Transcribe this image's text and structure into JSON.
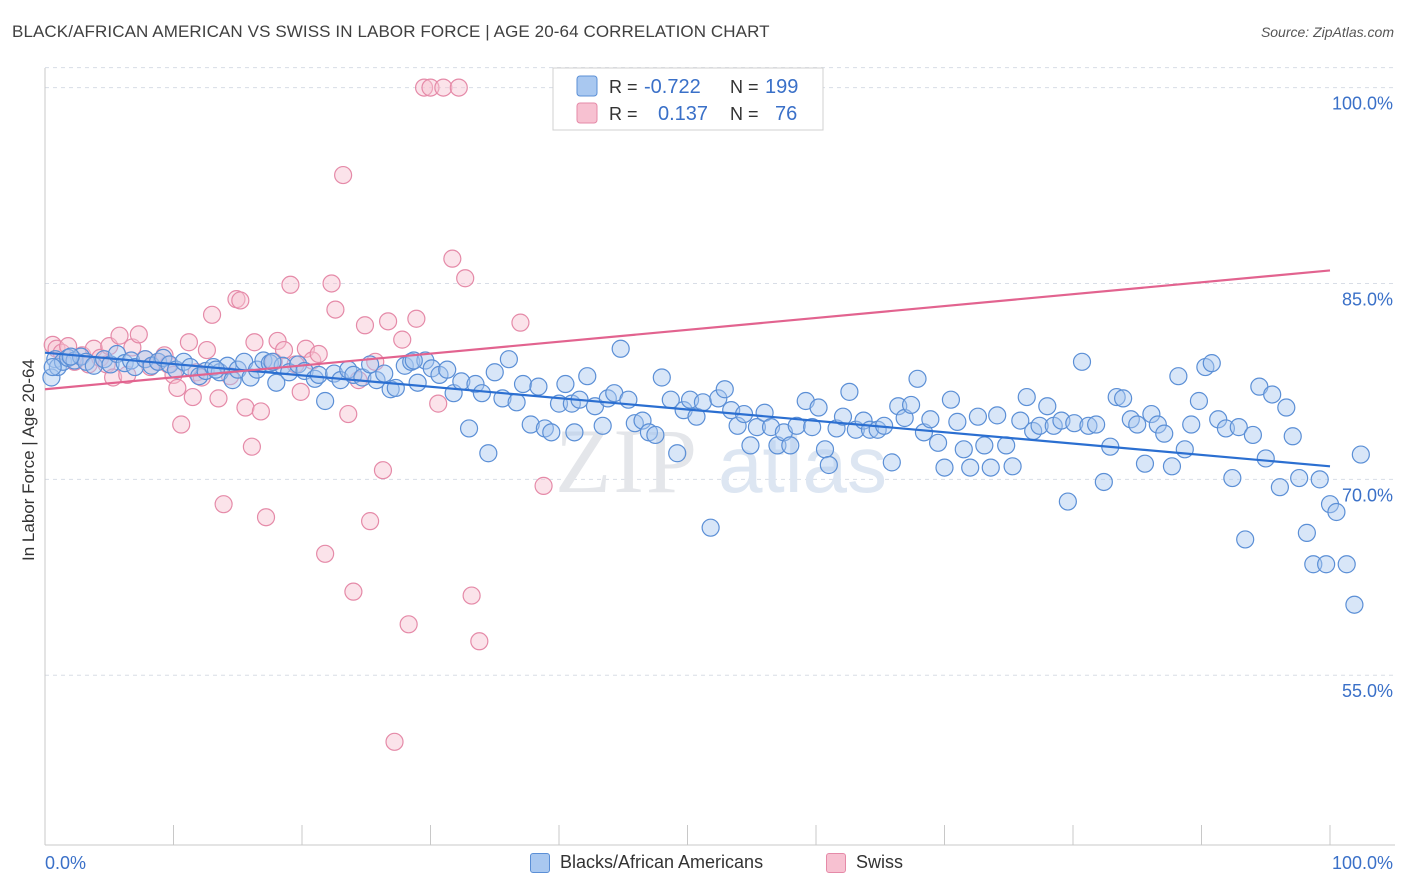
{
  "title": "BLACK/AFRICAN AMERICAN VS SWISS IN LABOR FORCE | AGE 20-64 CORRELATION CHART",
  "source": "Source: ZipAtlas.com",
  "watermark": {
    "zip": "ZIP",
    "atlas": "atlas"
  },
  "colors": {
    "blue_fill": "#a9c8f0",
    "blue_stroke": "#5b8fd6",
    "blue_line": "#2b6fd1",
    "pink_fill": "#f7c1d1",
    "pink_stroke": "#e58aa8",
    "pink_line": "#e2638f",
    "tick_label": "#3a70c8",
    "grid": "#d8dde6",
    "axis": "#c8c8c8"
  },
  "legend_stats": {
    "series": [
      {
        "r_label": "R =",
        "r_value": "-0.722",
        "n_label": "N =",
        "n_value": "199"
      },
      {
        "r_label": "R =",
        "r_value": "0.137",
        "n_label": "N =",
        "n_value": "76"
      }
    ]
  },
  "chart_data": {
    "type": "scatter",
    "title": "BLACK/AFRICAN AMERICAN VS SWISS IN LABOR FORCE | AGE 20-64 CORRELATION CHART",
    "xlabel": "",
    "ylabel": "In Labor Force | Age 20-64",
    "xlim": [
      0,
      100
    ],
    "ylim": [
      42,
      101.5
    ],
    "x_tick_labels": [
      "0.0%",
      "100.0%"
    ],
    "y_ticks": [
      55,
      70,
      85,
      100
    ],
    "y_tick_labels": [
      "55.0%",
      "70.0%",
      "85.0%",
      "100.0%"
    ],
    "grid": true,
    "legend_position": "bottom",
    "series": [
      {
        "name": "Blacks/African Americans",
        "r": -0.722,
        "n": 199,
        "trend": {
          "x": [
            0,
            100
          ],
          "y": [
            79.7,
            71.0
          ]
        },
        "points": [
          [
            0.5,
            77.8
          ],
          [
            0.8,
            79.2
          ],
          [
            1.0,
            78.6
          ],
          [
            1.4,
            79.0
          ],
          [
            1.8,
            79.3
          ],
          [
            2.3,
            79.1
          ],
          [
            2.8,
            79.4
          ],
          [
            3.2,
            79.0
          ],
          [
            3.8,
            78.7
          ],
          [
            4.6,
            79.2
          ],
          [
            5.1,
            78.8
          ],
          [
            5.6,
            79.6
          ],
          [
            6.2,
            78.9
          ],
          [
            6.7,
            79.1
          ],
          [
            7.0,
            78.6
          ],
          [
            7.8,
            79.2
          ],
          [
            8.3,
            78.7
          ],
          [
            8.8,
            79.0
          ],
          [
            9.2,
            79.3
          ],
          [
            9.7,
            78.8
          ],
          [
            10.2,
            78.4
          ],
          [
            10.8,
            79.0
          ],
          [
            11.3,
            78.6
          ],
          [
            12.0,
            77.9
          ],
          [
            12.5,
            78.3
          ],
          [
            13.1,
            78.6
          ],
          [
            13.6,
            78.2
          ],
          [
            14.2,
            78.7
          ],
          [
            14.6,
            77.6
          ],
          [
            15.0,
            78.4
          ],
          [
            15.5,
            79.0
          ],
          [
            16.0,
            77.8
          ],
          [
            16.5,
            78.4
          ],
          [
            17.0,
            79.1
          ],
          [
            17.5,
            78.9
          ],
          [
            18.0,
            77.4
          ],
          [
            18.5,
            78.7
          ],
          [
            19.0,
            78.2
          ],
          [
            19.7,
            78.8
          ],
          [
            20.2,
            78.3
          ],
          [
            21.0,
            77.7
          ],
          [
            21.3,
            78.0
          ],
          [
            21.8,
            76.0
          ],
          [
            22.5,
            78.1
          ],
          [
            23.0,
            77.6
          ],
          [
            23.6,
            78.4
          ],
          [
            24.0,
            78.0
          ],
          [
            24.7,
            77.8
          ],
          [
            25.3,
            78.8
          ],
          [
            25.8,
            77.6
          ],
          [
            26.4,
            78.1
          ],
          [
            26.9,
            76.9
          ],
          [
            27.3,
            77.0
          ],
          [
            28.0,
            78.7
          ],
          [
            28.5,
            79.0
          ],
          [
            29.0,
            77.4
          ],
          [
            29.6,
            79.1
          ],
          [
            30.1,
            78.5
          ],
          [
            30.7,
            78.0
          ],
          [
            31.3,
            78.4
          ],
          [
            31.8,
            76.6
          ],
          [
            32.4,
            77.5
          ],
          [
            33.0,
            73.9
          ],
          [
            33.5,
            77.3
          ],
          [
            34.0,
            76.6
          ],
          [
            34.5,
            72.0
          ],
          [
            35.0,
            78.2
          ],
          [
            35.6,
            76.2
          ],
          [
            36.1,
            79.2
          ],
          [
            36.7,
            75.9
          ],
          [
            37.2,
            77.3
          ],
          [
            37.8,
            74.2
          ],
          [
            38.4,
            77.1
          ],
          [
            38.9,
            73.9
          ],
          [
            39.4,
            73.6
          ],
          [
            40.0,
            75.8
          ],
          [
            40.5,
            77.3
          ],
          [
            41.0,
            75.8
          ],
          [
            41.6,
            76.1
          ],
          [
            42.2,
            77.9
          ],
          [
            42.8,
            75.6
          ],
          [
            43.4,
            74.1
          ],
          [
            43.8,
            76.2
          ],
          [
            44.3,
            76.6
          ],
          [
            44.8,
            80.0
          ],
          [
            45.4,
            76.1
          ],
          [
            45.9,
            74.3
          ],
          [
            46.5,
            74.5
          ],
          [
            47.0,
            73.6
          ],
          [
            47.5,
            73.4
          ],
          [
            48.0,
            77.8
          ],
          [
            48.7,
            76.1
          ],
          [
            49.2,
            72.0
          ],
          [
            49.7,
            75.3
          ],
          [
            50.2,
            76.1
          ],
          [
            50.7,
            74.8
          ],
          [
            51.2,
            75.9
          ],
          [
            51.8,
            66.3
          ],
          [
            52.4,
            76.2
          ],
          [
            52.9,
            76.9
          ],
          [
            53.4,
            75.3
          ],
          [
            53.9,
            74.1
          ],
          [
            54.4,
            75.0
          ],
          [
            54.9,
            72.6
          ],
          [
            55.4,
            74.0
          ],
          [
            56.0,
            75.1
          ],
          [
            56.5,
            74.0
          ],
          [
            57.0,
            72.6
          ],
          [
            57.5,
            73.6
          ],
          [
            58.0,
            72.6
          ],
          [
            58.5,
            74.1
          ],
          [
            59.2,
            76.0
          ],
          [
            59.7,
            74.0
          ],
          [
            60.2,
            75.5
          ],
          [
            60.7,
            72.3
          ],
          [
            61.0,
            71.1
          ],
          [
            61.6,
            73.9
          ],
          [
            62.1,
            74.8
          ],
          [
            62.6,
            76.7
          ],
          [
            63.1,
            73.8
          ],
          [
            63.7,
            74.5
          ],
          [
            64.2,
            73.8
          ],
          [
            64.8,
            73.8
          ],
          [
            65.3,
            74.1
          ],
          [
            65.9,
            71.3
          ],
          [
            66.4,
            75.6
          ],
          [
            66.9,
            74.7
          ],
          [
            67.4,
            75.7
          ],
          [
            67.9,
            77.7
          ],
          [
            68.4,
            73.6
          ],
          [
            68.9,
            74.6
          ],
          [
            69.5,
            72.8
          ],
          [
            70.0,
            70.9
          ],
          [
            70.5,
            76.1
          ],
          [
            71.0,
            74.4
          ],
          [
            71.5,
            72.3
          ],
          [
            72.0,
            70.9
          ],
          [
            72.6,
            74.8
          ],
          [
            73.1,
            72.6
          ],
          [
            73.6,
            70.9
          ],
          [
            74.1,
            74.9
          ],
          [
            74.8,
            72.6
          ],
          [
            75.3,
            71.0
          ],
          [
            75.9,
            74.5
          ],
          [
            76.4,
            76.3
          ],
          [
            76.9,
            73.7
          ],
          [
            77.4,
            74.1
          ],
          [
            78.0,
            75.6
          ],
          [
            78.5,
            74.1
          ],
          [
            79.1,
            74.5
          ],
          [
            79.6,
            68.3
          ],
          [
            80.1,
            74.3
          ],
          [
            80.7,
            79.0
          ],
          [
            81.2,
            74.1
          ],
          [
            81.8,
            74.2
          ],
          [
            82.4,
            69.8
          ],
          [
            82.9,
            72.5
          ],
          [
            83.4,
            76.3
          ],
          [
            83.9,
            76.2
          ],
          [
            84.5,
            74.6
          ],
          [
            85.0,
            74.2
          ],
          [
            85.6,
            71.2
          ],
          [
            86.1,
            75.0
          ],
          [
            86.6,
            74.2
          ],
          [
            87.1,
            73.5
          ],
          [
            87.7,
            71.0
          ],
          [
            88.2,
            77.9
          ],
          [
            88.7,
            72.3
          ],
          [
            89.2,
            74.2
          ],
          [
            89.8,
            76.0
          ],
          [
            90.3,
            78.6
          ],
          [
            90.8,
            78.9
          ],
          [
            91.3,
            74.6
          ],
          [
            91.9,
            73.9
          ],
          [
            92.4,
            70.1
          ],
          [
            92.9,
            74.0
          ],
          [
            93.4,
            65.4
          ],
          [
            94.0,
            73.4
          ],
          [
            94.5,
            77.1
          ],
          [
            95.0,
            71.6
          ],
          [
            95.5,
            76.5
          ],
          [
            96.1,
            69.4
          ],
          [
            96.6,
            75.5
          ],
          [
            97.1,
            73.3
          ],
          [
            97.6,
            70.1
          ],
          [
            98.2,
            65.9
          ],
          [
            98.7,
            63.5
          ],
          [
            99.2,
            70.0
          ],
          [
            99.7,
            63.5
          ],
          [
            100.0,
            68.1
          ],
          [
            100.5,
            67.5
          ],
          [
            101.3,
            63.5
          ],
          [
            101.9,
            60.4
          ],
          [
            102.4,
            71.9
          ],
          [
            0.6,
            78.6
          ],
          [
            2.0,
            79.4
          ],
          [
            13.3,
            78.4
          ],
          [
            17.7,
            79.0
          ],
          [
            28.7,
            79.1
          ],
          [
            41.2,
            73.6
          ]
        ]
      },
      {
        "name": "Swiss",
        "r": 0.137,
        "n": 76,
        "trend": {
          "x": [
            0,
            100
          ],
          "y": [
            76.9,
            86.0
          ]
        },
        "points": [
          [
            0.6,
            80.3
          ],
          [
            0.9,
            80.0
          ],
          [
            1.3,
            79.7
          ],
          [
            1.8,
            80.2
          ],
          [
            2.3,
            79.0
          ],
          [
            2.9,
            79.5
          ],
          [
            3.4,
            78.8
          ],
          [
            3.8,
            80.0
          ],
          [
            4.3,
            79.3
          ],
          [
            4.8,
            78.8
          ],
          [
            5.0,
            80.2
          ],
          [
            5.3,
            77.8
          ],
          [
            5.8,
            81.0
          ],
          [
            6.4,
            78.0
          ],
          [
            6.8,
            80.1
          ],
          [
            7.3,
            81.1
          ],
          [
            7.8,
            79.2
          ],
          [
            8.2,
            78.6
          ],
          [
            8.8,
            79.0
          ],
          [
            9.3,
            79.5
          ],
          [
            9.6,
            78.8
          ],
          [
            10.0,
            78.0
          ],
          [
            10.3,
            77.0
          ],
          [
            10.6,
            74.2
          ],
          [
            11.2,
            80.5
          ],
          [
            11.5,
            76.3
          ],
          [
            11.8,
            78.2
          ],
          [
            12.2,
            77.8
          ],
          [
            12.6,
            79.9
          ],
          [
            13.0,
            82.6
          ],
          [
            13.5,
            76.2
          ],
          [
            13.9,
            68.1
          ],
          [
            14.4,
            77.9
          ],
          [
            14.9,
            83.8
          ],
          [
            15.2,
            83.7
          ],
          [
            15.6,
            75.5
          ],
          [
            16.1,
            72.5
          ],
          [
            16.3,
            80.5
          ],
          [
            16.8,
            75.2
          ],
          [
            17.2,
            67.1
          ],
          [
            17.8,
            79.0
          ],
          [
            18.1,
            80.6
          ],
          [
            18.6,
            79.9
          ],
          [
            19.1,
            84.9
          ],
          [
            19.5,
            78.8
          ],
          [
            19.9,
            76.7
          ],
          [
            20.3,
            80.0
          ],
          [
            20.8,
            79.1
          ],
          [
            21.3,
            79.6
          ],
          [
            21.8,
            64.3
          ],
          [
            22.3,
            85.0
          ],
          [
            22.6,
            83.0
          ],
          [
            23.2,
            93.3
          ],
          [
            23.6,
            75.0
          ],
          [
            24.0,
            61.4
          ],
          [
            24.4,
            77.6
          ],
          [
            24.9,
            81.8
          ],
          [
            25.3,
            66.8
          ],
          [
            25.7,
            79.0
          ],
          [
            26.3,
            70.7
          ],
          [
            26.7,
            82.1
          ],
          [
            27.2,
            49.9
          ],
          [
            27.8,
            80.7
          ],
          [
            28.3,
            58.9
          ],
          [
            28.9,
            82.3
          ],
          [
            29.5,
            100.0
          ],
          [
            30.0,
            100.0
          ],
          [
            30.6,
            75.8
          ],
          [
            31.0,
            100.0
          ],
          [
            31.7,
            86.9
          ],
          [
            32.2,
            100.0
          ],
          [
            32.7,
            85.4
          ],
          [
            33.2,
            61.1
          ],
          [
            33.8,
            57.6
          ],
          [
            37.0,
            82.0
          ],
          [
            38.8,
            69.5
          ]
        ]
      }
    ]
  },
  "axis_titles": {
    "y": "In Labor Force | Age 20-64"
  }
}
